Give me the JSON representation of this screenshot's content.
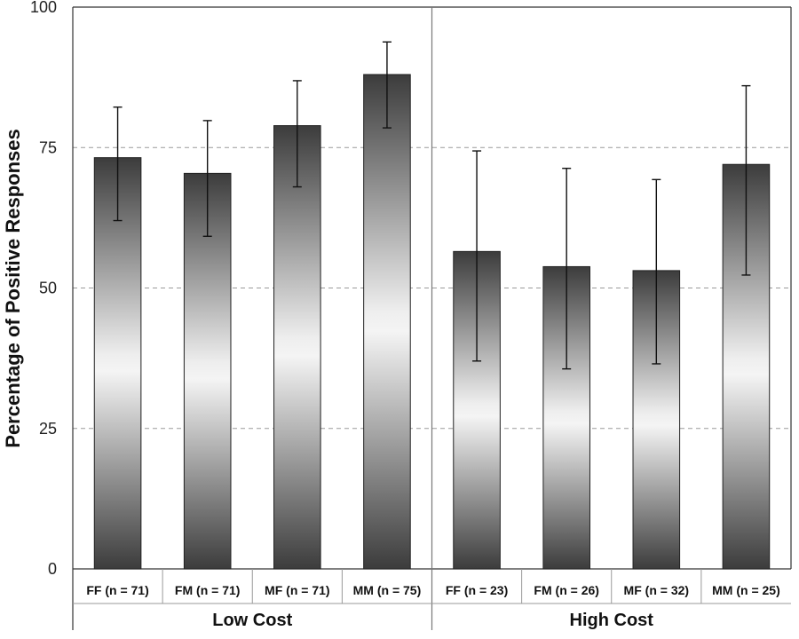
{
  "chart_data": {
    "type": "bar",
    "ylabel": "Percentage of Positive Responses",
    "xlabel": "",
    "title": "",
    "ylim": [
      0,
      100
    ],
    "yticks": [
      0,
      25,
      50,
      75,
      100
    ],
    "grid": "horizontal dashed",
    "groups": [
      {
        "label": "Low Cost",
        "categories": [
          "FF (n = 71)",
          "FM (n = 71)",
          "MF (n = 71)",
          "MM (n = 75)"
        ],
        "values": [
          73.2,
          70.4,
          78.9,
          88.0
        ],
        "error_low": [
          62.0,
          59.2,
          68.0,
          78.5
        ],
        "error_high": [
          82.2,
          79.8,
          86.9,
          93.8
        ]
      },
      {
        "label": "High Cost",
        "categories": [
          "FF (n = 23)",
          "FM (n = 26)",
          "MF (n = 32)",
          "MM (n = 25)"
        ],
        "values": [
          56.5,
          53.8,
          53.1,
          72.0
        ],
        "error_low": [
          37.0,
          35.6,
          36.5,
          52.3
        ],
        "error_high": [
          74.4,
          71.3,
          69.3,
          86.0
        ]
      }
    ]
  }
}
